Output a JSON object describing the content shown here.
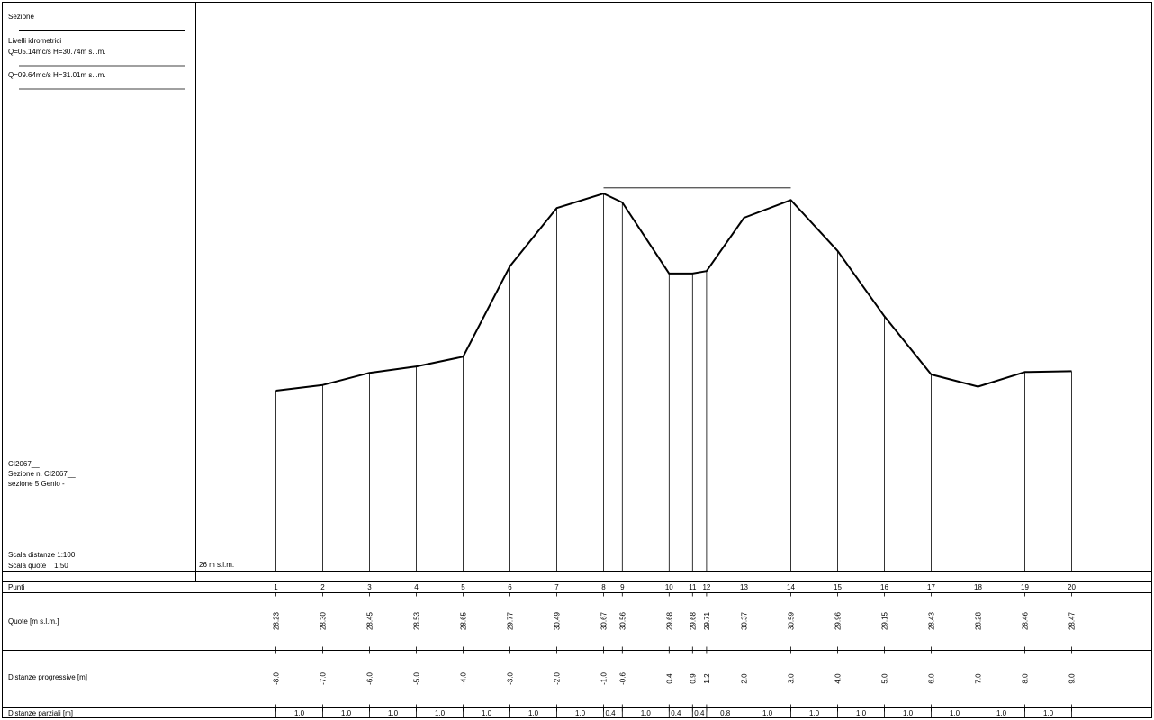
{
  "legend": {
    "section_label": "Sezione",
    "levels_label": "Livelli idrometrici",
    "levels": [
      "Q=05.14mc/s  H=30.74m s.l.m.",
      "Q=09.64mc/s  H=31.01m s.l.m."
    ],
    "water_levels_m": [
      30.74,
      31.01
    ]
  },
  "info": {
    "code": "CI2067__",
    "section_number": "Sezione n. CI2067__",
    "description": "sezione 5 Genio -"
  },
  "scale": {
    "distances": "Scala distanze 1:100",
    "heights": "Scala quote    1:50"
  },
  "datum_label": "26 m s.l.m.",
  "table": {
    "row_labels": {
      "points": "Punti",
      "heights": "Quote [m s.l.m.]",
      "progressive": "Distanze progressive [m]",
      "partial": "Distanze parziali [m]"
    },
    "partial_distances": [
      "1.0",
      "1.0",
      "1.0",
      "1.0",
      "1.0",
      "1.0",
      "1.0",
      "0.4",
      "1.0",
      "0.4",
      "0.4",
      "0.8",
      "1.0",
      "1.0",
      "1.0",
      "1.0",
      "1.0",
      "1.0",
      "1.0"
    ]
  },
  "chart_data": {
    "type": "line",
    "xlabel": "Distanze progressive [m]",
    "ylabel": "Quote [m s.l.m.]",
    "datum": 26,
    "points": [
      "1",
      "2",
      "3",
      "4",
      "5",
      "6",
      "7",
      "8",
      "9",
      "10",
      "11",
      "12",
      "13",
      "14",
      "15",
      "16",
      "17",
      "18",
      "19",
      "20"
    ],
    "x": [
      -8.0,
      -7.0,
      -6.0,
      -5.0,
      -4.0,
      -3.0,
      -2.0,
      -1.0,
      -0.6,
      0.4,
      0.9,
      1.2,
      2.0,
      3.0,
      4.0,
      5.0,
      6.0,
      7.0,
      8.0,
      9.0
    ],
    "x_labels": [
      "-8.0",
      "-7.0",
      "-6.0",
      "-5.0",
      "-4.0",
      "-3.0",
      "-2.0",
      "-1.0",
      "-0.6",
      "0.4",
      "0.9",
      "1.2",
      "2.0",
      "3.0",
      "4.0",
      "5.0",
      "6.0",
      "7.0",
      "8.0",
      "9.0"
    ],
    "y": [
      28.23,
      28.3,
      28.45,
      28.53,
      28.65,
      29.77,
      30.49,
      30.67,
      30.56,
      29.68,
      29.68,
      29.71,
      30.37,
      30.59,
      29.96,
      29.15,
      28.43,
      28.28,
      28.46,
      28.47
    ],
    "y_labels": [
      "28.23",
      "28.30",
      "28.45",
      "28.53",
      "28.65",
      "29.77",
      "30.49",
      "30.67",
      "30.56",
      "29.68",
      "29.68",
      "29.71",
      "30.37",
      "30.59",
      "29.96",
      "29.15",
      "28.43",
      "28.28",
      "28.46",
      "28.47"
    ]
  }
}
